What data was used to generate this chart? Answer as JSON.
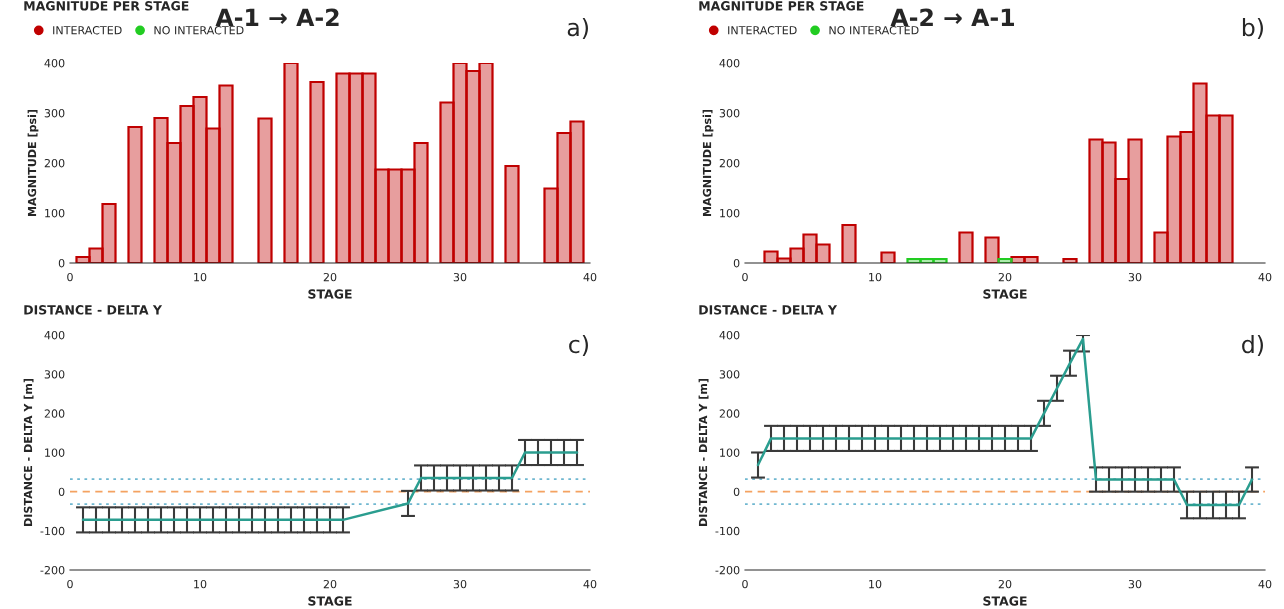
{
  "chart_data": [
    {
      "type": "bar",
      "title": "MAGNITUDE PER STAGE",
      "annotations": [
        "A-1 → A-2",
        "a)"
      ],
      "xlabel": "STAGE",
      "ylabel": "MAGNITUDE [psi]",
      "series": [
        {
          "name": "INTERACTED",
          "color": "#c00000",
          "x": [
            1,
            2,
            3,
            5,
            7,
            8,
            9,
            10,
            11,
            12,
            15,
            17,
            19,
            21,
            22,
            23,
            24,
            25,
            26,
            27,
            29,
            30,
            31,
            32,
            34,
            37,
            38,
            39
          ],
          "values": [
            12,
            29,
            118,
            272,
            290,
            240,
            314,
            332,
            269,
            355,
            289,
            400,
            362,
            379,
            379,
            379,
            187,
            187,
            187,
            240,
            321,
            400,
            384,
            400,
            194,
            149,
            260,
            283
          ]
        },
        {
          "name": "NO INTERACTED",
          "color": "#22cc22"
        }
      ],
      "xlim": [
        0,
        40
      ],
      "xticks": [
        0,
        10,
        20,
        30,
        40
      ],
      "ylim": [
        0,
        400
      ],
      "yticks": [
        0,
        100,
        200,
        300,
        400
      ],
      "marker": "circle",
      "legend": "top left",
      "grid": false
    },
    {
      "type": "bar",
      "title": "MAGNITUDE PER STAGE",
      "annotations": [
        "A-2 → A-1",
        "b)"
      ],
      "xlabel": "STAGE",
      "ylabel": "MAGNITUDE [psi]",
      "series": [
        {
          "name": "INTERACTED",
          "color": "#c00000",
          "x": [
            2,
            3,
            4,
            5,
            6,
            8,
            11,
            17,
            19,
            21,
            22,
            25,
            27,
            28,
            29,
            30,
            32,
            33,
            34,
            35,
            36,
            37
          ],
          "values": [
            23,
            9,
            29,
            57,
            37,
            76,
            21,
            61,
            51,
            12,
            12,
            8,
            247,
            241,
            168,
            247,
            61,
            253,
            262,
            359,
            295,
            295
          ]
        },
        {
          "name": "NO INTERACTED",
          "color": "#22cc22",
          "x": [
            13,
            14,
            15,
            20
          ],
          "values": [
            8,
            8,
            8,
            8
          ]
        }
      ],
      "xlim": [
        0,
        40
      ],
      "xticks": [
        0,
        10,
        20,
        30,
        40
      ],
      "ylim": [
        0,
        400
      ],
      "yticks": [
        0,
        100,
        200,
        300,
        400
      ],
      "marker": "circle",
      "legend": "top left",
      "grid": false
    },
    {
      "type": "line",
      "title": "DISTANCE - DELTA Y",
      "annotations": [
        "c)"
      ],
      "xlabel": "STAGE",
      "ylabel": "DISTANCE - DELTA Y [m]",
      "x": [
        1,
        2,
        3,
        4,
        5,
        6,
        7,
        8,
        9,
        10,
        11,
        12,
        13,
        14,
        15,
        16,
        17,
        18,
        19,
        20,
        21,
        26,
        27,
        28,
        29,
        30,
        31,
        32,
        33,
        34,
        35,
        36,
        37,
        38,
        39
      ],
      "series": [
        {
          "color": "#2a9d8f",
          "values": [
            -72,
            -72,
            -72,
            -72,
            -72,
            -72,
            -72,
            -72,
            -72,
            -72,
            -72,
            -72,
            -72,
            -72,
            -72,
            -72,
            -72,
            -72,
            -72,
            -72,
            -72,
            -30,
            35,
            35,
            35,
            35,
            35,
            35,
            35,
            35,
            100,
            100,
            100,
            100,
            100
          ],
          "errors": [
            32,
            32,
            32,
            32,
            32,
            32,
            32,
            32,
            32,
            32,
            32,
            32,
            32,
            32,
            32,
            32,
            32,
            32,
            32,
            32,
            32,
            32,
            32,
            32,
            32,
            32,
            32,
            32,
            32,
            32,
            32,
            32,
            32,
            32,
            32
          ]
        }
      ],
      "ref_lines": [
        {
          "axis": "y",
          "value": 0,
          "color": "#f4a261",
          "line_style": "dashed"
        },
        {
          "axis": "y",
          "value": 32,
          "color": "#6fb7d0",
          "line_style": "dotted"
        },
        {
          "axis": "y",
          "value": -32,
          "color": "#6fb7d0",
          "line_style": "dotted"
        }
      ],
      "xlim": [
        0,
        40
      ],
      "xticks": [
        0,
        10,
        20,
        30,
        40
      ],
      "ylim": [
        -200,
        400
      ],
      "yticks": [
        -200,
        -100,
        0,
        100,
        200,
        300,
        400
      ],
      "marker": "none",
      "grid": false
    },
    {
      "type": "line",
      "title": "DISTANCE - DELTA Y",
      "annotations": [
        "d)"
      ],
      "xlabel": "STAGE",
      "ylabel": "DISTANCE - DELTA Y [m]",
      "x": [
        1,
        2,
        3,
        4,
        5,
        6,
        7,
        8,
        9,
        10,
        11,
        12,
        13,
        14,
        15,
        16,
        17,
        18,
        19,
        20,
        21,
        22,
        23,
        24,
        25,
        26,
        27,
        28,
        29,
        30,
        31,
        32,
        33,
        34,
        35,
        36,
        37,
        38,
        39
      ],
      "series": [
        {
          "color": "#2a9d8f",
          "values": [
            68,
            136,
            136,
            136,
            136,
            136,
            136,
            136,
            136,
            136,
            136,
            136,
            136,
            136,
            136,
            136,
            136,
            136,
            136,
            136,
            136,
            136,
            200,
            264,
            328,
            390,
            31,
            31,
            31,
            31,
            31,
            31,
            31,
            -34,
            -34,
            -34,
            -34,
            -34,
            31
          ],
          "errors": [
            32,
            32,
            32,
            32,
            32,
            32,
            32,
            32,
            32,
            32,
            32,
            32,
            32,
            32,
            32,
            32,
            32,
            32,
            32,
            32,
            32,
            32,
            32,
            32,
            32,
            [
              358,
              400
            ],
            31,
            31,
            31,
            31,
            31,
            31,
            31,
            34,
            34,
            34,
            34,
            34,
            31
          ]
        }
      ],
      "ref_lines": [
        {
          "axis": "y",
          "value": 0,
          "color": "#f4a261",
          "line_style": "dashed"
        },
        {
          "axis": "y",
          "value": 32,
          "color": "#6fb7d0",
          "line_style": "dotted"
        },
        {
          "axis": "y",
          "value": -32,
          "color": "#6fb7d0",
          "line_style": "dotted"
        }
      ],
      "xlim": [
        0,
        40
      ],
      "xticks": [
        0,
        10,
        20,
        30,
        40
      ],
      "ylim": [
        -200,
        400
      ],
      "yticks": [
        -200,
        -100,
        0,
        100,
        200,
        300,
        400
      ],
      "marker": "none",
      "grid": false
    }
  ]
}
